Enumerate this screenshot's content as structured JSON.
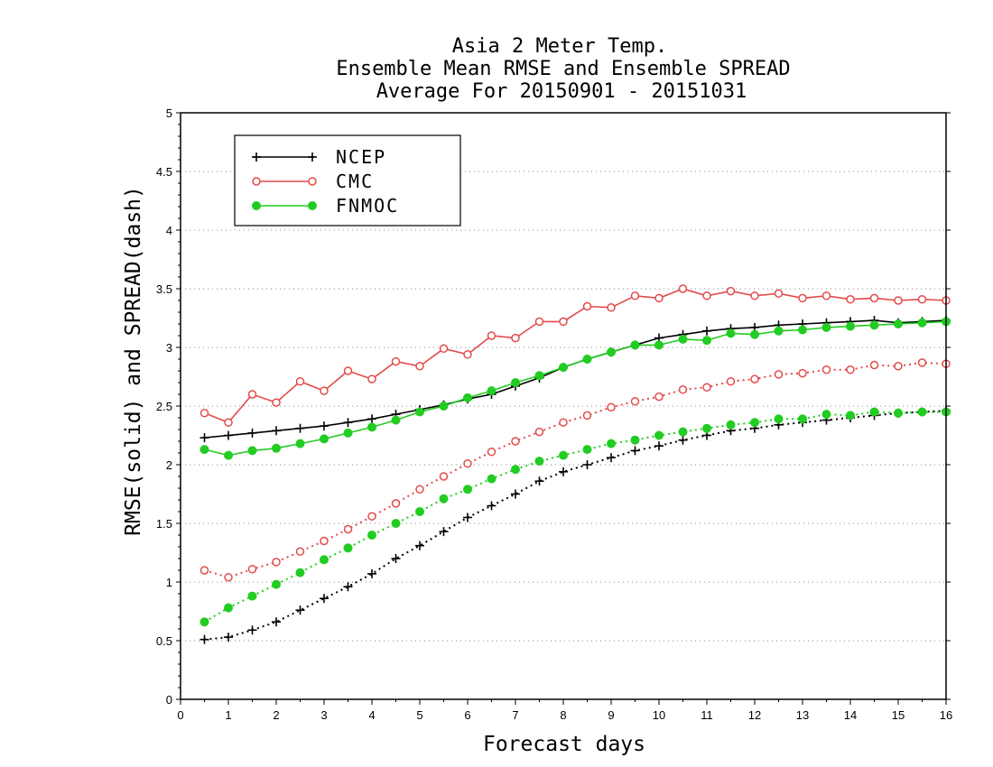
{
  "title_lines": [
    "Asia 2 Meter Temp.",
    "Ensemble Mean RMSE and Ensemble SPREAD",
    "Average For 20150901 - 20151031"
  ],
  "chart_data": {
    "type": "line",
    "title": "Asia 2 Meter Temp. / Ensemble Mean RMSE and Ensemble SPREAD / Average For 20150901 - 20151031",
    "xlabel": "Forecast days",
    "ylabel": "RMSE(solid) and SPREAD(dash)",
    "xlim": [
      0,
      16
    ],
    "ylim": [
      0,
      5
    ],
    "xticks": [
      0,
      1,
      2,
      3,
      4,
      5,
      6,
      7,
      8,
      9,
      10,
      11,
      12,
      13,
      14,
      15,
      16
    ],
    "yticks": [
      0,
      0.5,
      1,
      1.5,
      2,
      2.5,
      3,
      3.5,
      4,
      4.5,
      5
    ],
    "ytick_labels": [
      "0",
      "0.5",
      "1",
      "1.5",
      "2",
      "2.5",
      "3",
      "3.5",
      "4",
      "4.5",
      "5"
    ],
    "grid": "horizontal dotted",
    "legend_position": "top-left",
    "x": [
      0.5,
      1,
      1.5,
      2,
      2.5,
      3,
      3.5,
      4,
      4.5,
      5,
      5.5,
      6,
      6.5,
      7,
      7.5,
      8,
      8.5,
      9,
      9.5,
      10,
      10.5,
      11,
      11.5,
      12,
      12.5,
      13,
      13.5,
      14,
      14.5,
      15,
      15.5,
      16
    ],
    "series": [
      {
        "name": "NCEP",
        "color": "#000000",
        "marker": "plus",
        "style": "solid",
        "kind": "RMSE",
        "values": [
          2.23,
          2.25,
          2.27,
          2.29,
          2.31,
          2.33,
          2.36,
          2.39,
          2.43,
          2.47,
          2.51,
          2.56,
          2.6,
          2.67,
          2.74,
          2.83,
          2.9,
          2.96,
          3.02,
          3.08,
          3.11,
          3.14,
          3.16,
          3.17,
          3.19,
          3.2,
          3.21,
          3.22,
          3.23,
          3.21,
          3.22,
          3.23
        ]
      },
      {
        "name": "CMC",
        "color": "#e34a4a",
        "marker": "circle-open",
        "style": "solid",
        "kind": "RMSE",
        "values": [
          2.44,
          2.36,
          2.6,
          2.53,
          2.71,
          2.63,
          2.8,
          2.73,
          2.88,
          2.84,
          2.99,
          2.94,
          3.1,
          3.08,
          3.22,
          3.22,
          3.35,
          3.34,
          3.44,
          3.42,
          3.5,
          3.44,
          3.48,
          3.44,
          3.46,
          3.42,
          3.44,
          3.41,
          3.42,
          3.4,
          3.41,
          3.4
        ]
      },
      {
        "name": "FNMOC",
        "color": "#22cc22",
        "marker": "circle-filled",
        "style": "solid",
        "kind": "RMSE",
        "values": [
          2.13,
          2.08,
          2.12,
          2.14,
          2.18,
          2.22,
          2.27,
          2.32,
          2.38,
          2.45,
          2.5,
          2.57,
          2.63,
          2.7,
          2.76,
          2.83,
          2.9,
          2.96,
          3.02,
          3.02,
          3.07,
          3.06,
          3.12,
          3.11,
          3.14,
          3.15,
          3.17,
          3.18,
          3.19,
          3.2,
          3.21,
          3.22
        ]
      },
      {
        "name": "NCEP",
        "color": "#000000",
        "marker": "plus",
        "style": "dotted",
        "kind": "SPREAD",
        "values": [
          0.51,
          0.53,
          0.59,
          0.66,
          0.76,
          0.86,
          0.96,
          1.07,
          1.2,
          1.31,
          1.43,
          1.55,
          1.65,
          1.75,
          1.86,
          1.94,
          2.0,
          2.06,
          2.12,
          2.16,
          2.21,
          2.25,
          2.29,
          2.31,
          2.34,
          2.36,
          2.38,
          2.4,
          2.42,
          2.44,
          2.45,
          2.46
        ]
      },
      {
        "name": "CMC",
        "color": "#e34a4a",
        "marker": "circle-open",
        "style": "dotted",
        "kind": "SPREAD",
        "values": [
          1.1,
          1.04,
          1.11,
          1.17,
          1.26,
          1.35,
          1.45,
          1.56,
          1.67,
          1.79,
          1.9,
          2.01,
          2.11,
          2.2,
          2.28,
          2.36,
          2.42,
          2.49,
          2.54,
          2.58,
          2.64,
          2.66,
          2.71,
          2.73,
          2.77,
          2.78,
          2.81,
          2.81,
          2.85,
          2.84,
          2.87,
          2.86
        ]
      },
      {
        "name": "FNMOC",
        "color": "#22cc22",
        "marker": "circle-filled",
        "style": "dotted",
        "kind": "SPREAD",
        "values": [
          0.66,
          0.78,
          0.88,
          0.98,
          1.08,
          1.19,
          1.29,
          1.4,
          1.5,
          1.6,
          1.71,
          1.79,
          1.88,
          1.96,
          2.03,
          2.08,
          2.13,
          2.18,
          2.21,
          2.25,
          2.28,
          2.31,
          2.34,
          2.36,
          2.39,
          2.39,
          2.43,
          2.42,
          2.45,
          2.44,
          2.45,
          2.45
        ]
      }
    ]
  },
  "legend": [
    {
      "label": "NCEP",
      "color": "#000000",
      "marker": "plus"
    },
    {
      "label": "CMC",
      "color": "#e34a4a",
      "marker": "circle-open"
    },
    {
      "label": "FNMOC",
      "color": "#22cc22",
      "marker": "circle-filled"
    }
  ]
}
